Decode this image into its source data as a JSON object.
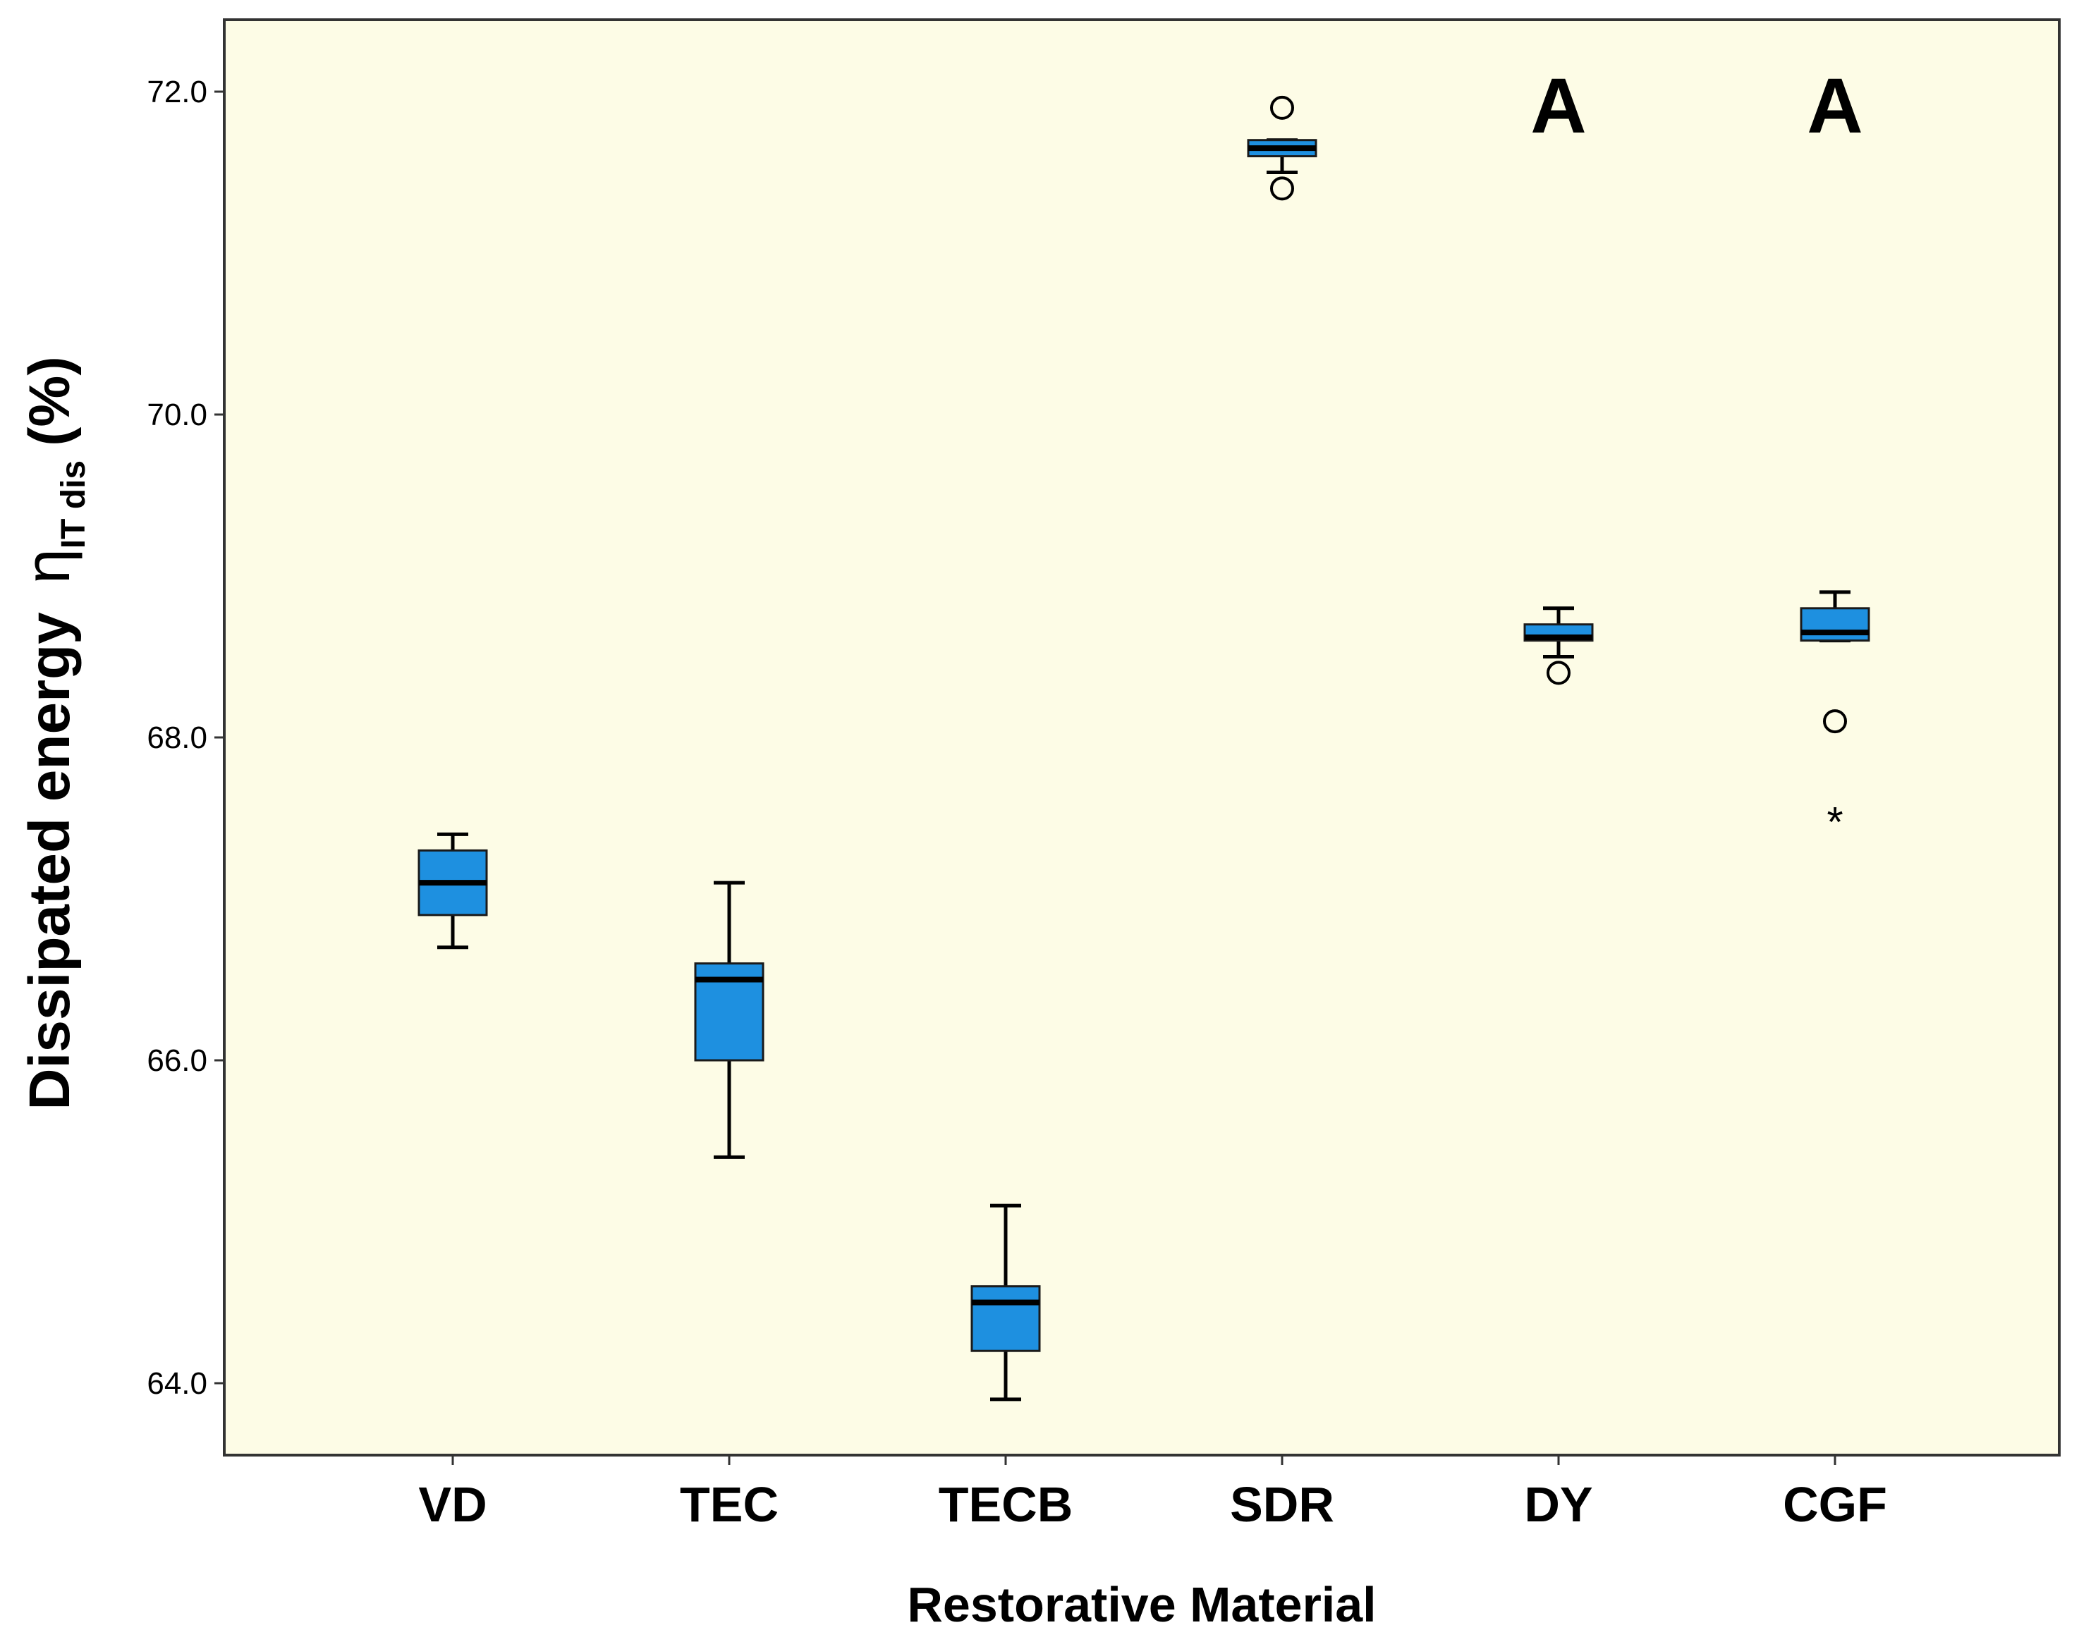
{
  "chart_data": {
    "type": "boxplot",
    "title": "",
    "xlabel": "Restorative Material",
    "ylabel": {
      "main": "Dissipated energy",
      "symbol": "η",
      "subscript": "IT dis",
      "unit": "(%)"
    },
    "ylim": [
      63.6,
      72.5
    ],
    "yticks": [
      64.0,
      66.0,
      68.0,
      70.0,
      72.0
    ],
    "ytick_labels": [
      "64.0",
      "66.0",
      "68.0",
      "70.0",
      "72.0"
    ],
    "grid": false,
    "categories": [
      "VD",
      "TEC",
      "TECB",
      "SDR",
      "DY",
      "CGF"
    ],
    "boxes": [
      {
        "name": "VD",
        "whisker_low": 66.7,
        "q1": 66.9,
        "median": 67.1,
        "q3": 67.3,
        "whisker_high": 67.4,
        "outliers": [],
        "extremes": [],
        "group_letter": ""
      },
      {
        "name": "TEC",
        "whisker_low": 65.4,
        "q1": 66.0,
        "median": 66.5,
        "q3": 66.6,
        "whisker_high": 67.1,
        "outliers": [],
        "extremes": [],
        "group_letter": ""
      },
      {
        "name": "TECB",
        "whisker_low": 63.9,
        "q1": 64.2,
        "median": 64.5,
        "q3": 64.6,
        "whisker_high": 65.1,
        "outliers": [],
        "extremes": [],
        "group_letter": ""
      },
      {
        "name": "SDR",
        "whisker_low": 71.5,
        "q1": 71.6,
        "median": 71.65,
        "q3": 71.7,
        "whisker_high": 71.7,
        "outliers": [
          71.9,
          71.4
        ],
        "extremes": [],
        "group_letter": ""
      },
      {
        "name": "DY",
        "whisker_low": 68.5,
        "q1": 68.6,
        "median": 68.62,
        "q3": 68.7,
        "whisker_high": 68.8,
        "outliers": [
          68.4
        ],
        "extremes": [],
        "group_letter": "A"
      },
      {
        "name": "CGF",
        "whisker_low": 68.6,
        "q1": 68.6,
        "median": 68.65,
        "q3": 68.8,
        "whisker_high": 68.9,
        "outliers": [
          68.1
        ],
        "extremes": [
          67.5
        ],
        "group_letter": "A"
      }
    ],
    "colors": {
      "plot_background": "#fdfce6",
      "box_fill": "#1e90e0",
      "box_stroke": "#1a1a1a",
      "median": "#000000"
    }
  }
}
